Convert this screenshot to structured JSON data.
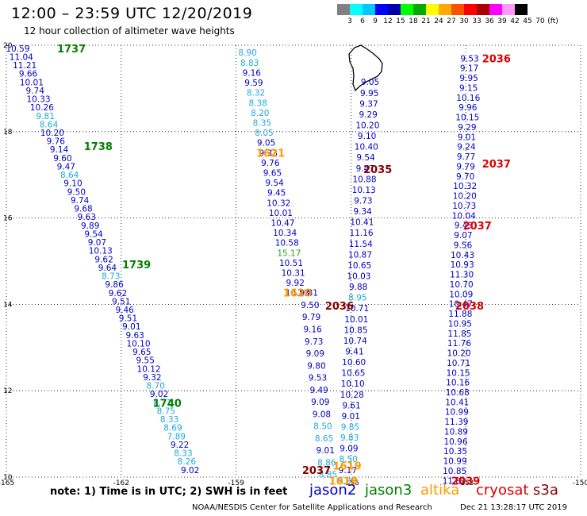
{
  "header": {
    "title": "12:00 – 23:59 UTC 12/20/2019",
    "subtitle": "12 hour collection of altimeter wave heights"
  },
  "legend": {
    "colors": [
      "#808080",
      "#00ffff",
      "#00c8ff",
      "#0000ff",
      "#0000aa",
      "#00ff00",
      "#00aa00",
      "#ffff00",
      "#ffaa00",
      "#ff5000",
      "#ff0000",
      "#aa0000",
      "#ff00ff",
      "#ff99ff",
      "#000000"
    ],
    "labels": [
      "3",
      "6",
      "9",
      "12",
      "15",
      "18",
      "21",
      "24",
      "27",
      "30",
      "33",
      "36",
      "39",
      "42",
      "45",
      "70",
      "(ft)"
    ]
  },
  "axes": {
    "x_ticks": [
      "-165",
      "-162",
      "-159",
      "-156",
      "-153",
      "-150"
    ],
    "y_ticks": [
      "20",
      "18",
      "16",
      "14",
      "12",
      "10"
    ]
  },
  "chart_data": {
    "type": "scatter",
    "xlim": [
      -165,
      -150
    ],
    "ylim": [
      10,
      20
    ],
    "grid": true,
    "colors": {
      "jason2": "#0000c8",
      "jason2_light": "#20a8d8",
      "jason3": "#008000",
      "altika": "#ff9900",
      "cryosat": "#dd0000",
      "s3a": "#880000"
    },
    "time_labels": [
      {
        "text": "1737",
        "lon": -163.3,
        "lat": 19.93,
        "sat": "jason3"
      },
      {
        "text": "1738",
        "lon": -162.6,
        "lat": 17.67,
        "sat": "jason3"
      },
      {
        "text": "1739",
        "lon": -161.6,
        "lat": 14.93,
        "sat": "jason3"
      },
      {
        "text": "1740",
        "lon": -160.8,
        "lat": 11.72,
        "sat": "jason3"
      },
      {
        "text": "1621",
        "lon": -158.1,
        "lat": 17.51,
        "sat": "altika"
      },
      {
        "text": "1620",
        "lon": -157.4,
        "lat": 14.27,
        "sat": "altika"
      },
      {
        "text": "1619",
        "lon": -156.1,
        "lat": 10.27,
        "sat": "altika"
      },
      {
        "text": "1618",
        "lon": -156.2,
        "lat": 9.92,
        "sat": "altika"
      },
      {
        "text": "2035",
        "lon": -155.3,
        "lat": 17.13,
        "sat": "s3a"
      },
      {
        "text": "2036",
        "lon": -156.3,
        "lat": 13.97,
        "sat": "s3a"
      },
      {
        "text": "2037",
        "lon": -156.9,
        "lat": 10.17,
        "sat": "s3a"
      },
      {
        "text": "2036",
        "lon": -152.2,
        "lat": 19.7,
        "sat": "cryosat"
      },
      {
        "text": "2037",
        "lon": -152.2,
        "lat": 17.26,
        "sat": "cryosat"
      },
      {
        "text": "2037",
        "lon": -152.7,
        "lat": 15.83,
        "sat": "cryosat"
      },
      {
        "text": "2038",
        "lon": -152.9,
        "lat": 13.97,
        "sat": "cryosat"
      },
      {
        "text": "2039",
        "lon": -153.0,
        "lat": 9.92,
        "sat": "cryosat"
      }
    ],
    "tracks": [
      {
        "name": "track-1-jason3",
        "lon_start": -164.7,
        "lat_start": 19.93,
        "lon_end": -160.2,
        "lat_end": 10.17,
        "values": [
          "10.59",
          "11.04",
          "11.21",
          "9.66",
          "10.01",
          "9.74",
          "10.33",
          "10.26",
          "9.81",
          "8.64",
          "10.20",
          "9.76",
          "9.14",
          "9.60",
          "9.47",
          "8.64",
          "9.10",
          "9.50",
          "9.74",
          "9.68",
          "9.63",
          "9.89",
          "9.54",
          "9.07",
          "10.13",
          "9.62",
          "9.64",
          "8.73",
          "9.86",
          "9.62",
          "9.51",
          "9.46",
          "9.51",
          "9.01",
          "9.63",
          "10.10",
          "9.65",
          "9.55",
          "10.12",
          "9.32",
          "8.70",
          "9.02",
          "8.71",
          "8.75",
          "8.33",
          "8.69",
          "7.89",
          "9.22",
          "8.33",
          "8.26",
          "9.02"
        ],
        "light": [
          "9.81",
          "8.64",
          "8.64",
          "8.73",
          "8.70",
          "8.71",
          "8.75",
          "8.33",
          "8.69",
          "7.89",
          "8.33",
          "8.26"
        ]
      },
      {
        "name": "track-2-altika",
        "lon_start": -158.7,
        "lat_start": 19.83,
        "lon_end": -157.4,
        "lat_end": 14.27,
        "values": [
          "8.90",
          "8.83",
          "9.16",
          "9.59",
          "8.32",
          "8.38",
          "8.20",
          "8.35",
          "8.05",
          "9.05",
          "9.33",
          "9.76",
          "9.65",
          "9.54",
          "9.45",
          "10.32",
          "10.01",
          "10.47",
          "10.34",
          "10.58",
          "15.17",
          "10.51",
          "10.31",
          "9.92",
          "10.13"
        ],
        "light": [
          "8.90",
          "8.83",
          "8.32",
          "8.38",
          "8.20",
          "8.35",
          "8.05"
        ],
        "green": [
          "15.17"
        ]
      },
      {
        "name": "track-3-altika",
        "lon_start": -157.1,
        "lat_start": 14.27,
        "lon_end": -156.6,
        "lat_end": 10.06,
        "values": [
          "9.81",
          "9.50",
          "9.79",
          "9.16",
          "9.73",
          "9.09",
          "9.80",
          "9.53",
          "9.49",
          "9.09",
          "9.08",
          "8.50",
          "8.65",
          "9.01",
          "8.86",
          "8.85"
        ],
        "light": [
          "8.50",
          "8.65",
          "8.86",
          "8.85"
        ]
      },
      {
        "name": "track-4-s3a",
        "lon_start": -155.5,
        "lat_start": 19.15,
        "lon_end": -156.1,
        "lat_end": 9.92,
        "values": [
          "9.05",
          "9.95",
          "9.37",
          "9.29",
          "10.20",
          "9.10",
          "10.40",
          "9.54",
          "9.47",
          "10.88",
          "10.13",
          "9.73",
          "9.34",
          "10.41",
          "11.16",
          "11.54",
          "10.87",
          "10.65",
          "10.03",
          "9.88",
          "8.95",
          "10.71",
          "10.01",
          "10.85",
          "10.74",
          "9.41",
          "10.60",
          "10.65",
          "10.10",
          "10.28",
          "9.61",
          "9.01",
          "9.85",
          "9.83",
          "9.09",
          "8.50",
          "9.17",
          "9.86"
        ],
        "light": [
          "8.95",
          "9.85",
          "9.83",
          "8.50",
          "9.86"
        ]
      },
      {
        "name": "track-5-cryosat",
        "lon_start": -152.9,
        "lat_start": 19.7,
        "lon_end": -153.3,
        "lat_end": 9.92,
        "values": [
          "9.53",
          "9.17",
          "9.95",
          "9.15",
          "10.16",
          "9.96",
          "10.15",
          "9.29",
          "9.01",
          "9.24",
          "9.77",
          "9.79",
          "9.70",
          "10.32",
          "10.20",
          "10.73",
          "10.04",
          "9.43",
          "9.07",
          "9.56",
          "10.43",
          "10.93",
          "11.30",
          "10.70",
          "10.09",
          "10.47",
          "11.88",
          "10.95",
          "11.85",
          "11.76",
          "10.20",
          "10.71",
          "10.15",
          "10.16",
          "10.68",
          "10.41",
          "10.99",
          "11.39",
          "10.89",
          "10.96",
          "10.35",
          "10.99",
          "10.85",
          "11.82"
        ],
        "light": []
      }
    ]
  },
  "footer": {
    "note": "note:  1) Time is in UTC;  2) SWH is in feet",
    "sats": [
      {
        "label": "jason2",
        "color": "#0000c8"
      },
      {
        "label": "jason3",
        "color": "#008000"
      },
      {
        "label": "altika",
        "color": "#ff9900"
      },
      {
        "label": "cryosat",
        "color": "#dd0000"
      },
      {
        "label": "s3a",
        "color": "#880000"
      }
    ],
    "credit": "NOAA/NESDIS Center for Satellite Applications and Research",
    "stamp": "Dec 21 13:28:17 UTC 2019"
  }
}
